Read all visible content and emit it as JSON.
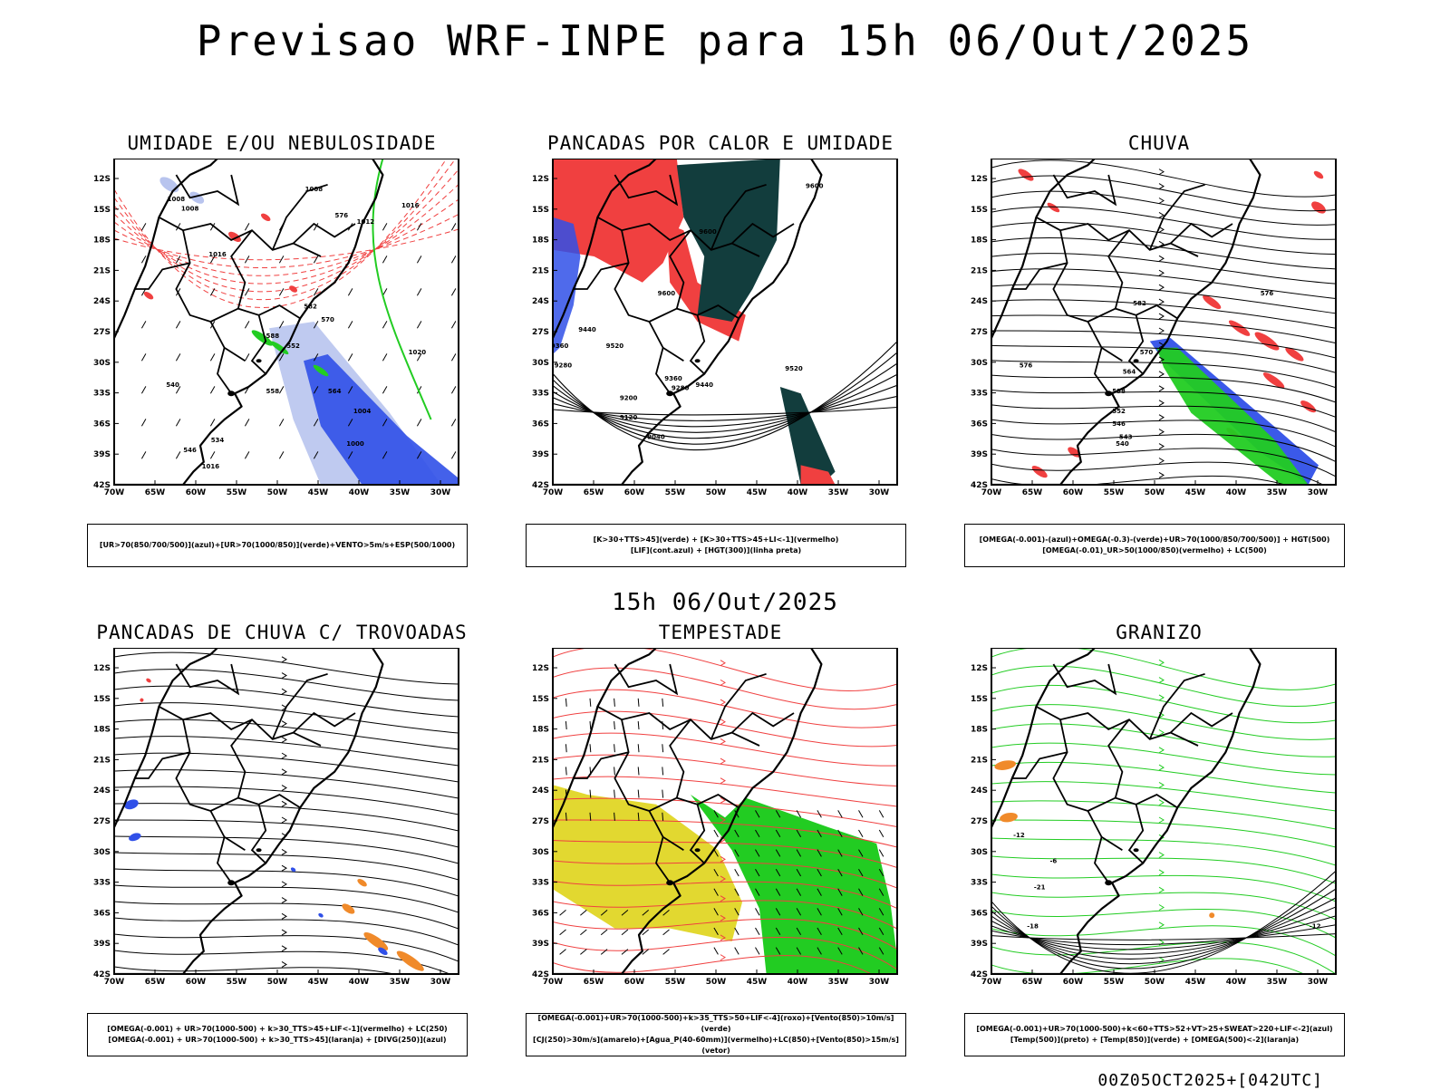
{
  "title": "Previsao WRF-INPE  para 15h 06/Out/2025",
  "subtitle": "15h 06/Out/2025",
  "footer": "00Z05OCT2025+[042UTC]",
  "axes": {
    "lat_labels": [
      "12S",
      "15S",
      "18S",
      "21S",
      "24S",
      "27S",
      "30S",
      "33S",
      "36S",
      "39S",
      "42S"
    ],
    "lon_labels": [
      "70W",
      "65W",
      "60W",
      "55W",
      "50W",
      "45W",
      "40W",
      "35W",
      "30W"
    ]
  },
  "colors": {
    "blue": "#3050e8",
    "green": "#22cc22",
    "red": "#f04040",
    "darkteal": "#123d3d",
    "lightblue": "#b8c4ee",
    "yellow": "#e2d830",
    "orange": "#f08a2a"
  },
  "panels": [
    {
      "id": "umidade",
      "title": "UMIDADE E/OU NEBULOSIDADE",
      "legend": [
        "[UR>70(850/700/500)](azul)+[UR>70(1000/850)](verde)+VENTO>5m/s+ESP(500/1000)"
      ],
      "contour_labels": [
        "1008",
        "1008",
        "1008",
        "1012",
        "1016",
        "1016",
        "1016",
        "1004",
        "1000",
        "1020",
        "576",
        "582",
        "588",
        "570",
        "564",
        "558",
        "540",
        "546",
        "534",
        "552"
      ]
    },
    {
      "id": "pancadas_calor",
      "title": "PANCADAS POR CALOR E UMIDADE",
      "legend": [
        "[K>30+TTS>45](verde) + [K>30+TTS>45+LI<-1](vermelho)",
        "[LIF](cont.azul) + [HGT(300)](linha preta)"
      ],
      "contour_labels": [
        "9600",
        "9600",
        "9600",
        "9520",
        "9520",
        "9440",
        "9440",
        "9360",
        "9360",
        "9280",
        "9280",
        "9200",
        "9120",
        "9040"
      ]
    },
    {
      "id": "chuva",
      "title": "CHUVA",
      "legend": [
        "[OMEGA(-0.001)-(azul)+OMEGA(-0.3)-(verde)+UR>70(1000/850/700/500)] + HGT(500)",
        "[OMEGA(-0.01)_UR>50(1000/850)(vermelho) + LC(500)"
      ],
      "contour_labels": [
        "582",
        "576",
        "576",
        "570",
        "564",
        "558",
        "552",
        "546",
        "540",
        "543"
      ]
    },
    {
      "id": "trovoadas",
      "title": "PANCADAS DE CHUVA C/ TROVOADAS",
      "legend": [
        "[OMEGA(-0.001) + UR>70(1000-500) + k>30_TTS>45+LIF<-1](vermelho) + LC(250)",
        "[OMEGA(-0.001) + UR>70(1000-500) + k>30_TTS>45](laranja) + [DIVG(250)](azul)"
      ],
      "contour_labels": []
    },
    {
      "id": "tempestade",
      "title": "TEMPESTADE",
      "legend": [
        "[OMEGA(-0.001)+UR>70(1000-500)+k>35_TTS>50+LIF<-4](roxo)+[Vento(850)>10m/s](verde)",
        "[CJ(250)>30m/s](amarelo)+[Agua_P(40-60mm)](vermelho)+LC(850)+[Vento(850)>15m/s](vetor)"
      ],
      "contour_labels": []
    },
    {
      "id": "granizo",
      "title": "GRANIZO",
      "legend": [
        "[OMEGA(-0.001)+UR>70(1000-500)+k<60+TTS>52+VT>25+SWEAT>220+LIF<-2](azul)",
        "[Temp(500)](preto) + [Temp(850)](verde) + [OMEGA(500)<-2](laranja)"
      ],
      "contour_labels": [
        "-21",
        "-12",
        "-12",
        "-6",
        "-18"
      ]
    }
  ]
}
